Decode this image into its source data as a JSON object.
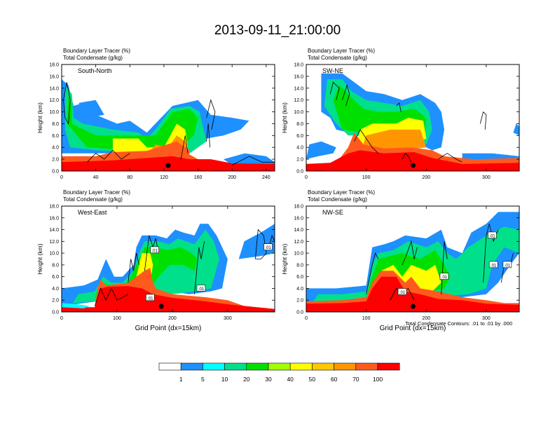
{
  "title": "2013-09-11_21:00:00",
  "colors": {
    "levels": [
      "#ffffff",
      "#1e90ff",
      "#00ffff",
      "#00e08a",
      "#00e000",
      "#a0ff00",
      "#ffff00",
      "#ffc800",
      "#ff9600",
      "#ff5a1e",
      "#ff0000"
    ],
    "contour": "#000000",
    "frame": "#000000"
  },
  "colorbar": {
    "labels": [
      "1",
      "5",
      "10",
      "20",
      "30",
      "40",
      "50",
      "60",
      "70",
      "100"
    ]
  },
  "footnote": "Total Condensate Contours: .01 to .01 by .000",
  "chart_data": [
    {
      "type": "heatmap",
      "name": "South-North",
      "line1": "Boundary Layer Tracer    (%)",
      "line2": "Total Condensate    (g/kg)",
      "ylabel": "Height (km)",
      "xlabel": "",
      "ylim": [
        0,
        18
      ],
      "yticks": [
        "0.0",
        "2.0",
        "4.0",
        "6.0",
        "8.0",
        "10.0",
        "12.0",
        "14.0",
        "16.0",
        "18.0"
      ],
      "xlim": [
        0,
        250
      ],
      "xticks": [
        0,
        40,
        80,
        120,
        160,
        200,
        240
      ],
      "marker_x": 125,
      "contour_labels": []
    },
    {
      "type": "heatmap",
      "name": "SW-NE",
      "line1": "Boundary Layer Tracer    (%)",
      "line2": "Total Condensate    (g/kg)",
      "ylabel": "Height (km)",
      "xlabel": "",
      "ylim": [
        0,
        18
      ],
      "yticks": [
        "0.0",
        "2.0",
        "4.0",
        "6.0",
        "8.0",
        "10.0",
        "12.0",
        "14.0",
        "16.0",
        "18.0"
      ],
      "xlim": [
        0,
        355
      ],
      "xticks": [
        0,
        100,
        200,
        300
      ],
      "marker_x": 178,
      "contour_labels": []
    },
    {
      "type": "heatmap",
      "name": "West-East",
      "line1": "Boundary Layer Tracer    (%)",
      "line2": "Total Condensate    (g/kg)",
      "ylabel": "Height (km)",
      "xlabel": "Grid Point (dx=15km)",
      "ylim": [
        0,
        18
      ],
      "yticks": [
        "0.0",
        "2.0",
        "4.0",
        "6.0",
        "8.0",
        "10.0",
        "12.0",
        "14.0",
        "16.0",
        "18.0"
      ],
      "xlim": [
        0,
        385
      ],
      "xticks": [
        0,
        100,
        200,
        300
      ],
      "marker_x": 180,
      "contour_labels": [
        {
          "x": 168,
          "y": 10.5,
          "text": ".01"
        },
        {
          "x": 252,
          "y": 4.0,
          "text": ".01"
        },
        {
          "x": 160,
          "y": 2.4,
          "text": ".01"
        },
        {
          "x": 373,
          "y": 11.0,
          "text": ".01"
        }
      ]
    },
    {
      "type": "heatmap",
      "name": "NW-SE",
      "line1": "Boundary Layer Tracer    (%)",
      "line2": "Total Condensate    (g/kg)",
      "ylabel": "Height (km)",
      "xlabel": "Grid Point (dx=15km)",
      "ylim": [
        0,
        18
      ],
      "yticks": [
        "0.0",
        "2.0",
        "4.0",
        "6.0",
        "8.0",
        "10.0",
        "12.0",
        "14.0",
        "16.0",
        "18.0"
      ],
      "xlim": [
        0,
        355
      ],
      "xticks": [
        0,
        100,
        200,
        300
      ],
      "marker_x": 178,
      "contour_labels": [
        {
          "x": 160,
          "y": 3.4,
          "text": ".01"
        },
        {
          "x": 230,
          "y": 6.0,
          "text": ".01"
        },
        {
          "x": 310,
          "y": 13.0,
          "text": ".01"
        },
        {
          "x": 312,
          "y": 8.0,
          "text": ".01"
        },
        {
          "x": 335,
          "y": 8.0,
          "text": ".01"
        }
      ]
    }
  ]
}
